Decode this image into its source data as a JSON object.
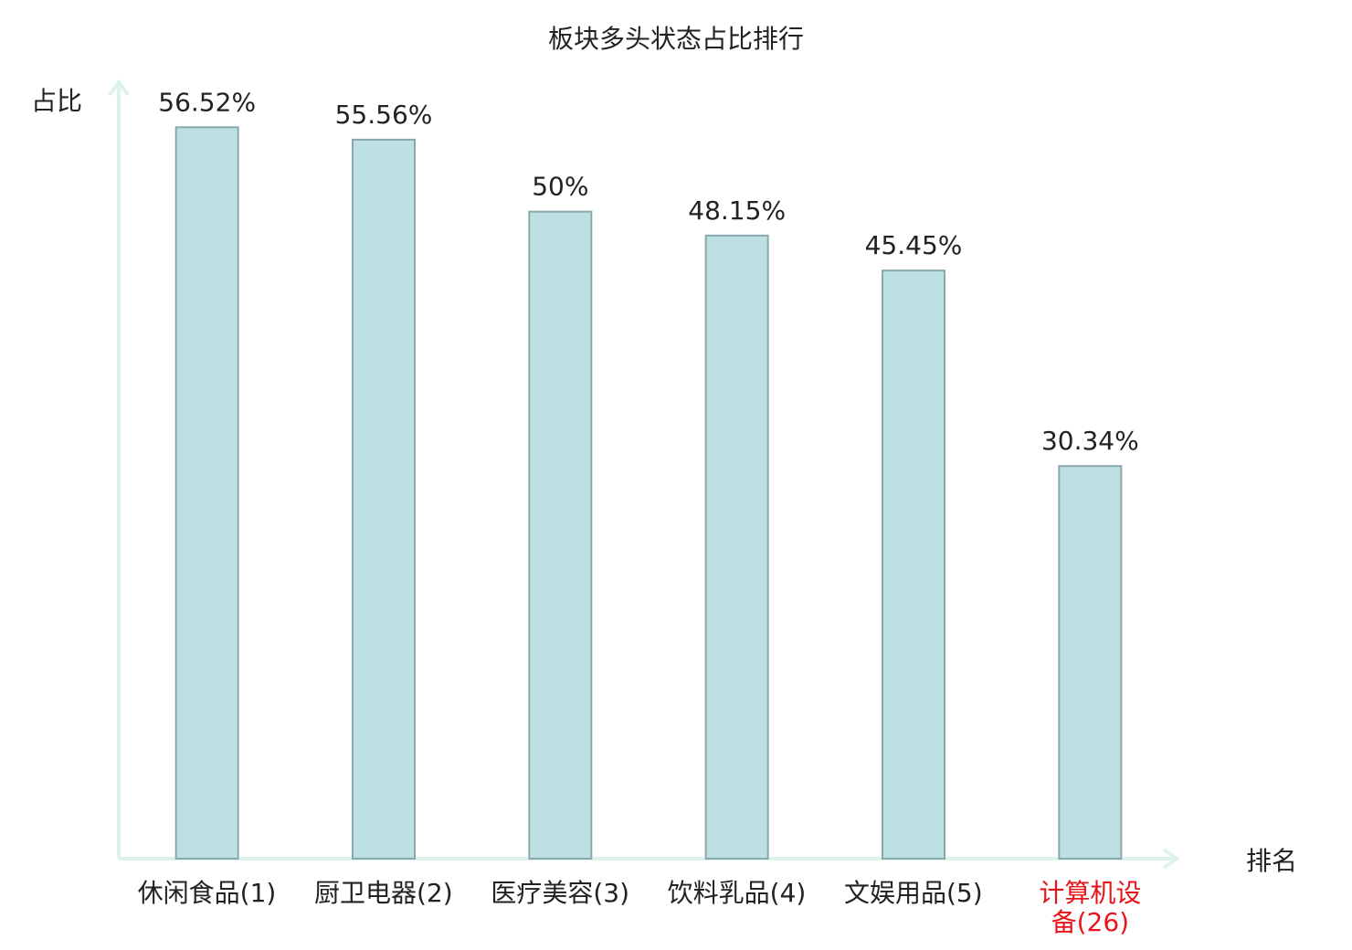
{
  "chart_data": {
    "type": "bar",
    "title": "板块多头状态占比排行",
    "y_label": "占比",
    "x_label": "排名",
    "categories": [
      "休闲食品(1)",
      "厨卫电器(2)",
      "医疗美容(3)",
      "饮料乳品(4)",
      "文娱用品(5)",
      "计算机设备(26)"
    ],
    "category_colors": [
      "#222222",
      "#222222",
      "#222222",
      "#222222",
      "#222222",
      "#e8141a"
    ],
    "values": [
      56.52,
      55.56,
      50,
      48.15,
      45.45,
      30.34
    ],
    "value_labels": [
      "56.52%",
      "55.56%",
      "50%",
      "48.15%",
      "45.45%",
      "30.34%"
    ],
    "color": "#bde0e3",
    "edge_color": "#8aa8ab",
    "ylim": [
      0,
      60
    ]
  }
}
